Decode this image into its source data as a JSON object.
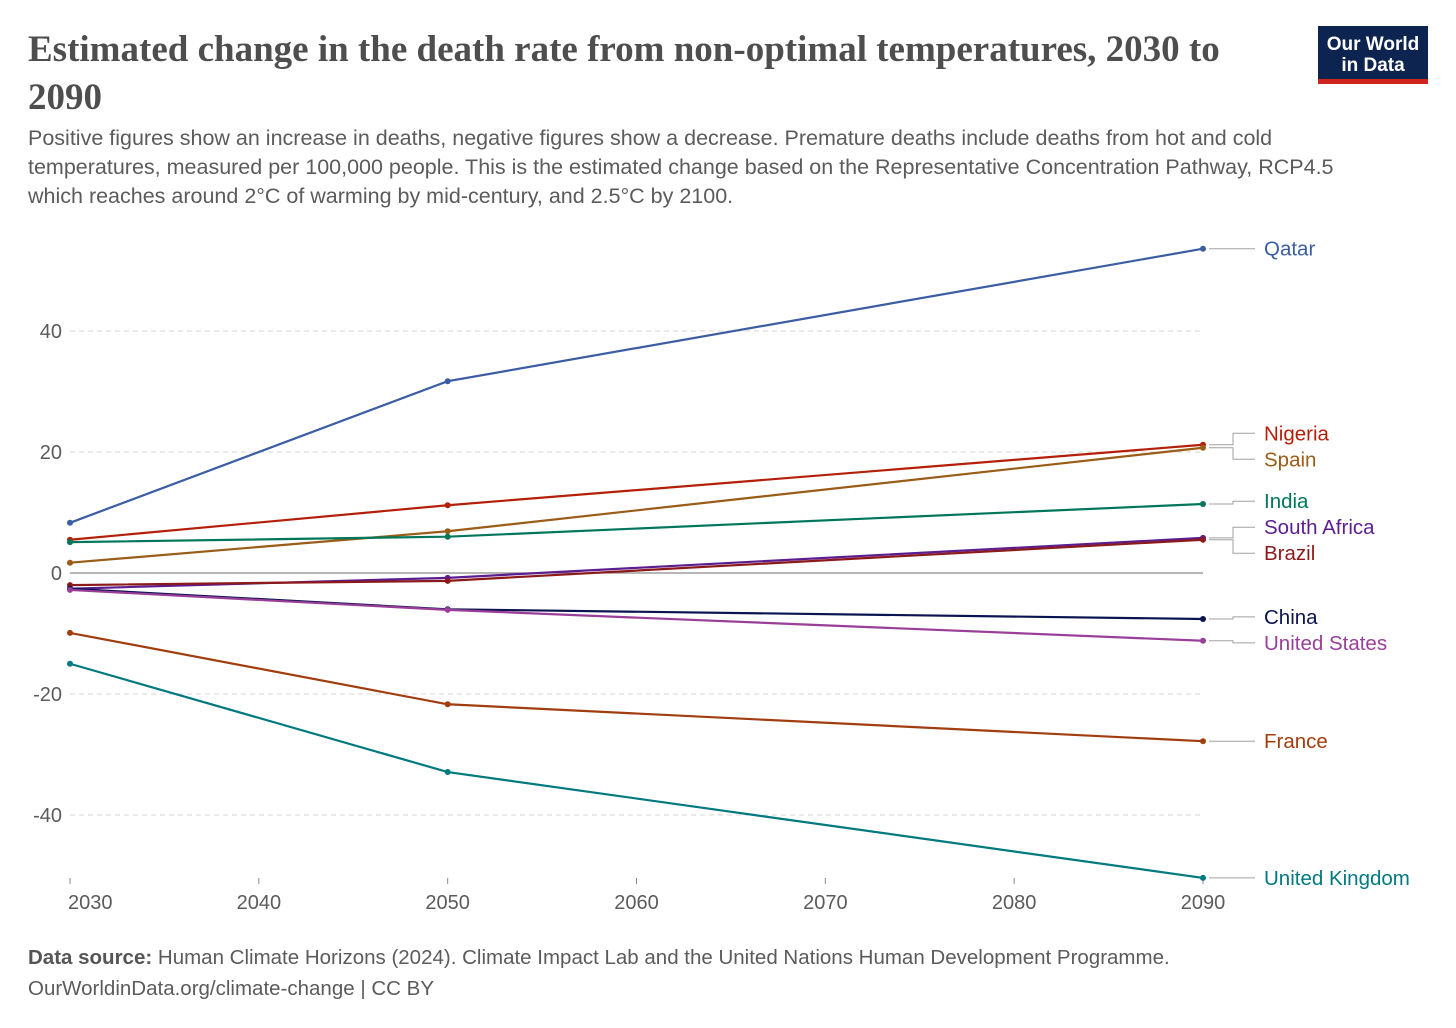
{
  "header": {
    "title": "Estimated change in the death rate from non-optimal temperatures, 2030 to 2090",
    "subtitle": "Positive figures show an increase in deaths, negative figures show a decrease. Premature deaths include deaths from hot and cold temperatures, measured per 100,000 people. This is the estimated change based on the Representative Concentration Pathway, RCP4.5 which reaches around 2°C of warming by mid-century, and 2.5°C by 2100.",
    "logo_text": "Our World in Data"
  },
  "footer": {
    "source_label": "Data source:",
    "source_text": "Human Climate Horizons (2024). Climate Impact Lab and the United Nations Human Development Programme.",
    "url_license": "OurWorldinData.org/climate-change | CC BY"
  },
  "chart_data": {
    "type": "line",
    "title": "Estimated change in the death rate from non-optimal temperatures, 2030 to 2090",
    "xlabel": "",
    "ylabel": "",
    "x": [
      2030,
      2050,
      2090
    ],
    "xlim": [
      2030,
      2090
    ],
    "ylim": [
      -50.4,
      53.6
    ],
    "x_ticks": [
      "2030",
      "2040",
      "2050",
      "2060",
      "2070",
      "2080",
      "2090"
    ],
    "y_ticks": [
      "-40",
      "-20",
      "0",
      "20",
      "40"
    ],
    "grid": "horizontal dashed",
    "legend": "right, labels at line ends",
    "series": [
      {
        "name": "Qatar",
        "color": "#3b5ea3",
        "values": [
          8.3,
          31.7,
          53.6
        ]
      },
      {
        "name": "Nigeria",
        "color": "#b51f09",
        "values": [
          5.5,
          11.2,
          21.2
        ]
      },
      {
        "name": "Spain",
        "color": "#9a5c16",
        "values": [
          1.7,
          6.9,
          20.7
        ]
      },
      {
        "name": "India",
        "color": "#00775a",
        "values": [
          5.1,
          6.0,
          11.4
        ]
      },
      {
        "name": "South Africa",
        "color": "#5b1d8f",
        "values": [
          -2.6,
          -0.8,
          5.8
        ]
      },
      {
        "name": "Brazil",
        "color": "#8c1a1a",
        "values": [
          -2.0,
          -1.3,
          5.5
        ]
      },
      {
        "name": "China",
        "color": "#0b1450",
        "values": [
          -2.6,
          -6.0,
          -7.6
        ]
      },
      {
        "name": "United States",
        "color": "#9a3e9a",
        "values": [
          -2.8,
          -6.1,
          -11.2
        ]
      },
      {
        "name": "France",
        "color": "#a13d0f",
        "values": [
          -9.9,
          -21.7,
          -27.8
        ]
      },
      {
        "name": "United Kingdom",
        "color": "#00797f",
        "values": [
          -15.0,
          -32.9,
          -50.4
        ]
      }
    ]
  }
}
